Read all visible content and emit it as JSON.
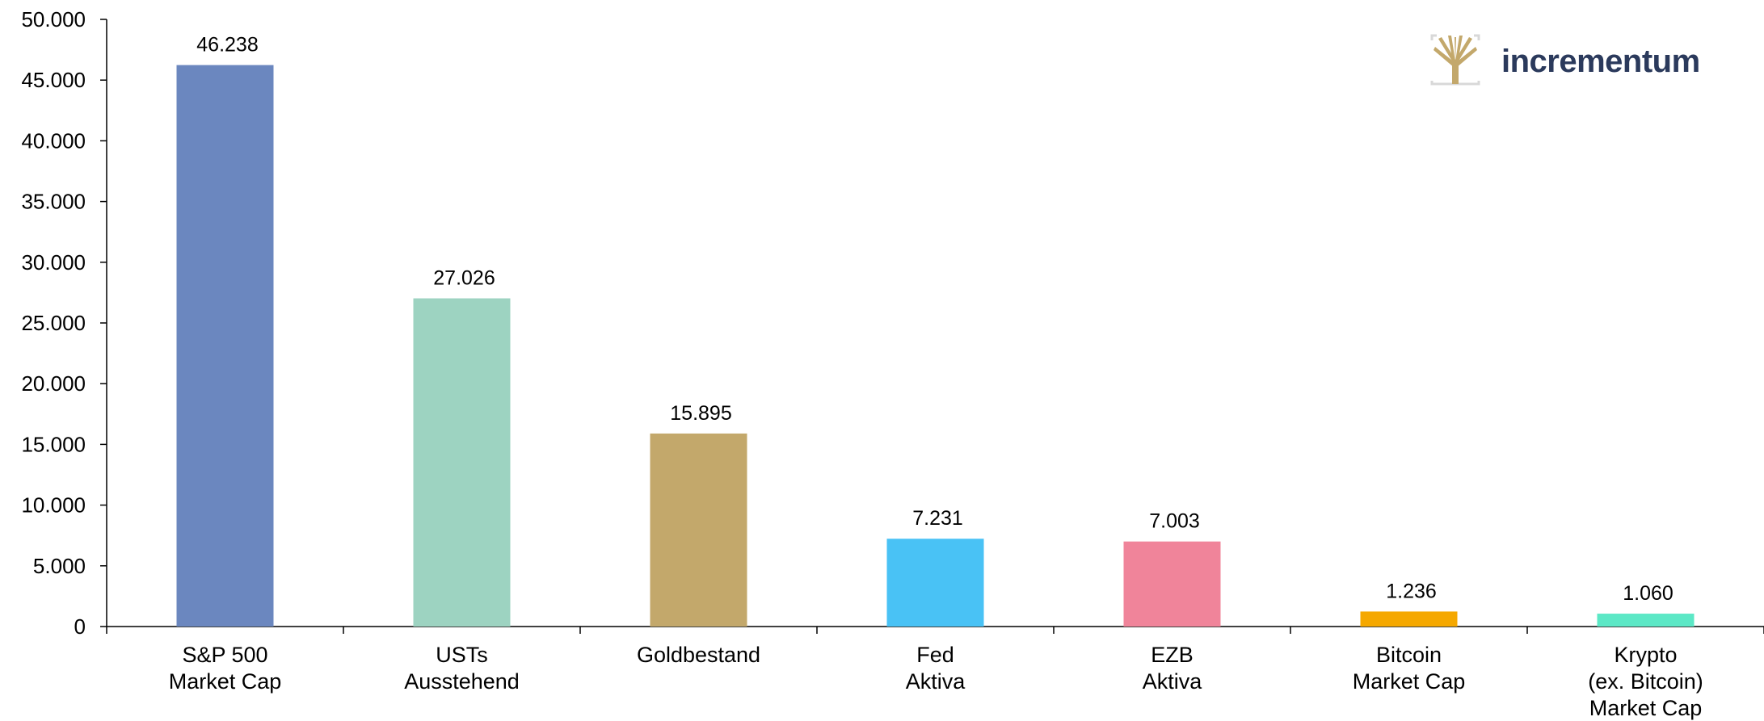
{
  "chart_data": {
    "type": "bar",
    "categories": [
      [
        "S&P 500",
        "Market Cap"
      ],
      [
        "USTs",
        "Ausstehend"
      ],
      [
        "Goldbestand"
      ],
      [
        "Fed",
        "Aktiva"
      ],
      [
        "EZB",
        "Aktiva"
      ],
      [
        "Bitcoin",
        "Market Cap"
      ],
      [
        "Krypto",
        "(ex. Bitcoin)",
        "Market Cap"
      ]
    ],
    "values": [
      46238,
      27026,
      15895,
      7231,
      7003,
      1236,
      1060
    ],
    "value_labels": [
      "46.238",
      "27.026",
      "15.895",
      "7.231",
      "7.003",
      "1.236",
      "1.060"
    ],
    "colors": [
      "#6b87bf",
      "#9dd3c1",
      "#c3a86b",
      "#49c2f5",
      "#f0849a",
      "#f5a800",
      "#5ce8c6"
    ],
    "ylim": [
      0,
      50000
    ],
    "yticks": [
      0,
      5000,
      10000,
      15000,
      20000,
      25000,
      30000,
      35000,
      40000,
      45000,
      50000
    ],
    "ytick_labels": [
      "0",
      "5.000",
      "10.000",
      "15.000",
      "20.000",
      "25.000",
      "30.000",
      "35.000",
      "40.000",
      "45.000",
      "50.000"
    ],
    "grid": false,
    "title": "",
    "xlabel": "",
    "ylabel": ""
  },
  "logo": {
    "text": "incrementum",
    "icon": "tree-logo-icon",
    "icon_color": "#c3a86b",
    "text_color": "#2b3a5c"
  }
}
